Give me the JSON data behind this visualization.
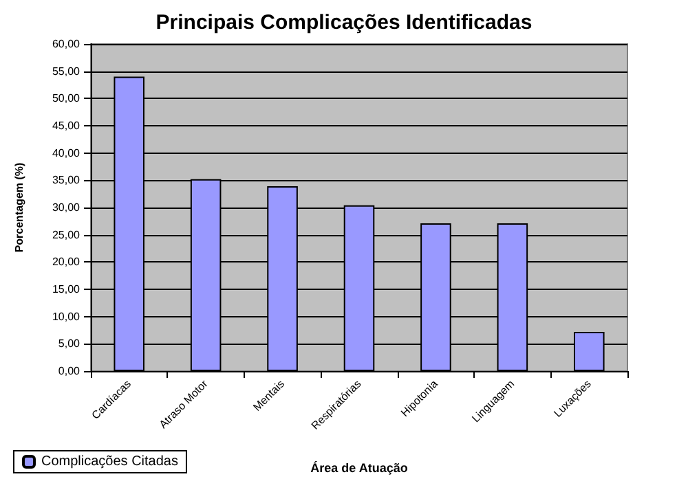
{
  "chart_data": {
    "type": "bar",
    "title": "Principais Complicações Identificadas",
    "xlabel": "Área de Atuação",
    "ylabel": "Porcentagem (%)",
    "categories": [
      "Cardíacas",
      "Atraso Motor",
      "Mentais",
      "Respiratórias",
      "Hipotonia",
      "Linguagem",
      "Luxações"
    ],
    "series": [
      {
        "name": "Complicações Citadas",
        "color": "#9999ff",
        "values": [
          54.0,
          35.2,
          33.9,
          30.4,
          27.1,
          27.1,
          7.2
        ]
      }
    ],
    "ylim": [
      0,
      60
    ],
    "yticks": [
      {
        "value": 0,
        "label": "0,00"
      },
      {
        "value": 5,
        "label": "5,00"
      },
      {
        "value": 10,
        "label": "10,00"
      },
      {
        "value": 15,
        "label": "15,00"
      },
      {
        "value": 20,
        "label": "20,00"
      },
      {
        "value": 25,
        "label": "25,00"
      },
      {
        "value": 30,
        "label": "30,00"
      },
      {
        "value": 35,
        "label": "35,00"
      },
      {
        "value": 40,
        "label": "40,00"
      },
      {
        "value": 45,
        "label": "45,00"
      },
      {
        "value": 50,
        "label": "50,00"
      },
      {
        "value": 55,
        "label": "55,00"
      },
      {
        "value": 60,
        "label": "60,00"
      }
    ],
    "grid": "y",
    "legend": "bottom left"
  }
}
